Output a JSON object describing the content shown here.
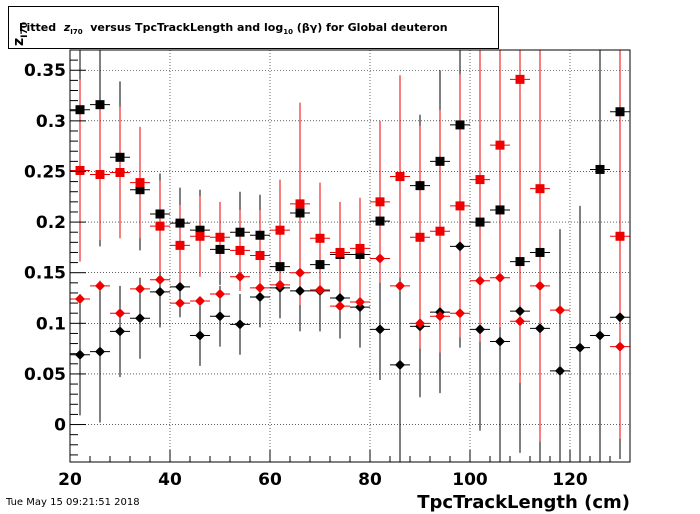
{
  "header": {
    "title_prefix": "Fitted",
    "title_z": "z",
    "title_z_sub": "I70",
    "title_mid": "versus TpcTrackLength and log",
    "title_log_sub": "10",
    "title_suffix": "(βγ) for Global deuteron"
  },
  "footer": {
    "datestamp": "Tue May 15 09:21:51 2018"
  },
  "chart_data": {
    "type": "scatter",
    "title": "Fitted z_I70 versus TpcTrackLength and log10(βγ) for Global deuteron",
    "xlabel": "TpcTrackLength (cm)",
    "ylabel": "z_I70",
    "xlim": [
      20,
      132
    ],
    "ylim": [
      -0.037,
      0.37
    ],
    "xticks": [
      20,
      40,
      60,
      80,
      100,
      120
    ],
    "yticks": [
      0,
      0.05,
      0.1,
      0.15,
      0.2,
      0.25,
      0.3,
      0.35
    ],
    "grid": true,
    "colors": {
      "black": "#000000",
      "red": "#ee0000"
    },
    "series": [
      {
        "marker": "square",
        "color": "black",
        "x": [
          22,
          26,
          30,
          34,
          38,
          42,
          46,
          50,
          54,
          58,
          62,
          66,
          70,
          74,
          78,
          82,
          86,
          90,
          94,
          98,
          102,
          106,
          110,
          114,
          126,
          130
        ],
        "y": [
          0.311,
          0.316,
          0.264,
          0.232,
          0.208,
          0.199,
          0.192,
          0.173,
          0.19,
          0.187,
          0.156,
          0.209,
          0.158,
          0.168,
          0.168,
          0.201,
          0.245,
          0.236,
          0.26,
          0.296,
          0.2,
          0.212,
          0.161,
          0.17,
          0.252,
          0.309
        ],
        "err": [
          0.12,
          0.14,
          0.075,
          0.06,
          0.04,
          0.035,
          0.04,
          0.035,
          0.04,
          0.04,
          0.045,
          0.04,
          0.04,
          0.05,
          0.05,
          0.06,
          0.07,
          0.07,
          0.09,
          0.11,
          0.1,
          0.12,
          0.14,
          0.14,
          0.25,
          0.25
        ]
      },
      {
        "marker": "diamond",
        "color": "black",
        "x": [
          22,
          26,
          30,
          34,
          38,
          42,
          46,
          50,
          54,
          58,
          62,
          66,
          70,
          74,
          78,
          82,
          86,
          90,
          94,
          98,
          102,
          106,
          110,
          114,
          118,
          122,
          126,
          130
        ],
        "y": [
          0.069,
          0.072,
          0.092,
          0.105,
          0.131,
          0.136,
          0.088,
          0.107,
          0.099,
          0.126,
          0.135,
          0.132,
          0.132,
          0.125,
          0.116,
          0.094,
          0.059,
          0.097,
          0.111,
          0.176,
          0.094,
          0.082,
          0.112,
          0.095,
          0.053,
          0.076,
          0.088,
          0.106
        ],
        "err": [
          0.06,
          0.07,
          0.045,
          0.04,
          0.035,
          0.03,
          0.03,
          0.03,
          0.03,
          0.03,
          0.03,
          0.04,
          0.04,
          0.04,
          0.04,
          0.05,
          0.1,
          0.07,
          0.08,
          0.1,
          0.1,
          0.12,
          0.14,
          0.14,
          0.14,
          0.14,
          0.14,
          0.14
        ]
      },
      {
        "marker": "square",
        "color": "red",
        "x": [
          22,
          26,
          30,
          34,
          38,
          42,
          46,
          50,
          54,
          58,
          62,
          66,
          70,
          74,
          78,
          82,
          86,
          90,
          94,
          98,
          102,
          106,
          110,
          114,
          130
        ],
        "y": [
          0.251,
          0.247,
          0.249,
          0.239,
          0.196,
          0.177,
          0.186,
          0.185,
          0.172,
          0.167,
          0.192,
          0.218,
          0.184,
          0.17,
          0.174,
          0.22,
          0.245,
          0.185,
          0.191,
          0.216,
          0.242,
          0.276,
          0.341,
          0.233,
          0.186
        ],
        "err": [
          0.09,
          0.065,
          0.065,
          0.055,
          0.045,
          0.04,
          0.04,
          0.035,
          0.04,
          0.045,
          0.05,
          0.1,
          0.055,
          0.05,
          0.05,
          0.08,
          0.1,
          0.11,
          0.12,
          0.13,
          0.16,
          0.18,
          0.3,
          0.25,
          0.2
        ]
      },
      {
        "marker": "diamond",
        "color": "red",
        "x": [
          22,
          26,
          30,
          34,
          38,
          42,
          46,
          50,
          54,
          58,
          62,
          66,
          70,
          74,
          78,
          82,
          86,
          90,
          94,
          98,
          102,
          106,
          110,
          114,
          118,
          130
        ],
        "y": [
          0.124,
          0.137,
          0.11,
          0.134,
          0.143,
          0.12,
          0.122,
          0.129,
          0.146,
          0.135,
          0.138,
          0.15,
          0.133,
          0.117,
          0.121,
          0.164,
          0.137,
          0.1,
          0.107,
          0.11,
          0.142,
          0.145,
          0.102,
          0.137,
          0.113,
          0.077
        ]
      }
    ]
  }
}
